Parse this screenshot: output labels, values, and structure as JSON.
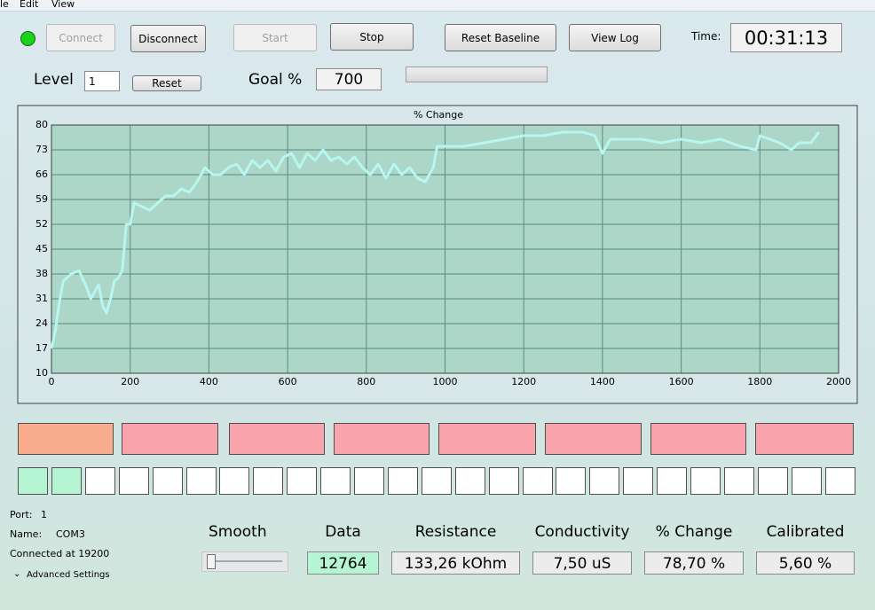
{
  "menu": [
    "le",
    "Edit",
    "View"
  ],
  "toolbar": {
    "connect": "Connect",
    "disconnect": "Disconnect",
    "start": "Start",
    "stop": "Stop",
    "reset_baseline": "Reset Baseline",
    "view_log": "View Log",
    "time_label": "Time:",
    "time": "00:31:13"
  },
  "level": {
    "label": "Level",
    "value": 1,
    "reset": "Reset"
  },
  "goal": {
    "label": "Goal %",
    "value": 700
  },
  "chart_data": {
    "type": "line",
    "title": "% Change",
    "x": [
      0,
      10,
      20,
      30,
      50,
      70,
      90,
      100,
      120,
      130,
      140,
      150,
      160,
      170,
      180,
      190,
      200,
      210,
      230,
      250,
      270,
      290,
      310,
      330,
      350,
      370,
      390,
      410,
      430,
      450,
      470,
      490,
      510,
      530,
      550,
      570,
      590,
      610,
      630,
      650,
      670,
      690,
      710,
      730,
      750,
      770,
      790,
      810,
      830,
      850,
      870,
      890,
      910,
      930,
      950,
      970,
      980,
      1000,
      1050,
      1100,
      1150,
      1200,
      1250,
      1300,
      1350,
      1380,
      1400,
      1420,
      1450,
      1500,
      1550,
      1600,
      1650,
      1700,
      1750,
      1790,
      1800,
      1850,
      1880,
      1900,
      1930,
      1950
    ],
    "series": [
      {
        "name": "% Change",
        "color": "#b8f6f0",
        "values": [
          17,
          22,
          30,
          36,
          38,
          39,
          34,
          31,
          35,
          29,
          27,
          31,
          36,
          37,
          39,
          52,
          52,
          58,
          57,
          56,
          58,
          60,
          60,
          62,
          61,
          64,
          68,
          66,
          66,
          68,
          69,
          66,
          70,
          68,
          70,
          67,
          71,
          72,
          68,
          72,
          70,
          73,
          70,
          71,
          69,
          71,
          68,
          66,
          69,
          65,
          69,
          66,
          68,
          65,
          64,
          68,
          74,
          74,
          74,
          75,
          76,
          77,
          77,
          78,
          78,
          77,
          72,
          76,
          76,
          76,
          75,
          76,
          75,
          76,
          74,
          73,
          77,
          75,
          73,
          75,
          75,
          78
        ]
      }
    ],
    "xlim": [
      0,
      2000
    ],
    "xticks": [
      0,
      200,
      400,
      600,
      800,
      1000,
      1200,
      1400,
      1600,
      1800,
      2000
    ],
    "ylim": [
      10,
      80
    ],
    "yticks": [
      10,
      17,
      24,
      31,
      38,
      45,
      52,
      59,
      66,
      73,
      80
    ],
    "grid": true
  },
  "port": {
    "port_label": "Port:",
    "port": 1,
    "name_label": "Name:",
    "name": "COM3",
    "status": "Connected at 19200",
    "advanced": "Advanced Settings"
  },
  "smooth": "Smooth",
  "readouts": [
    {
      "label": "Data",
      "value": 12764
    },
    {
      "label": "Resistance",
      "value": "133,26 kOhm"
    },
    {
      "label": "Conductivity",
      "value": "7,50 uS"
    },
    {
      "label": "% Change",
      "value": "78,70 %"
    },
    {
      "label": "Calibrated",
      "value": "5,60 %"
    }
  ]
}
